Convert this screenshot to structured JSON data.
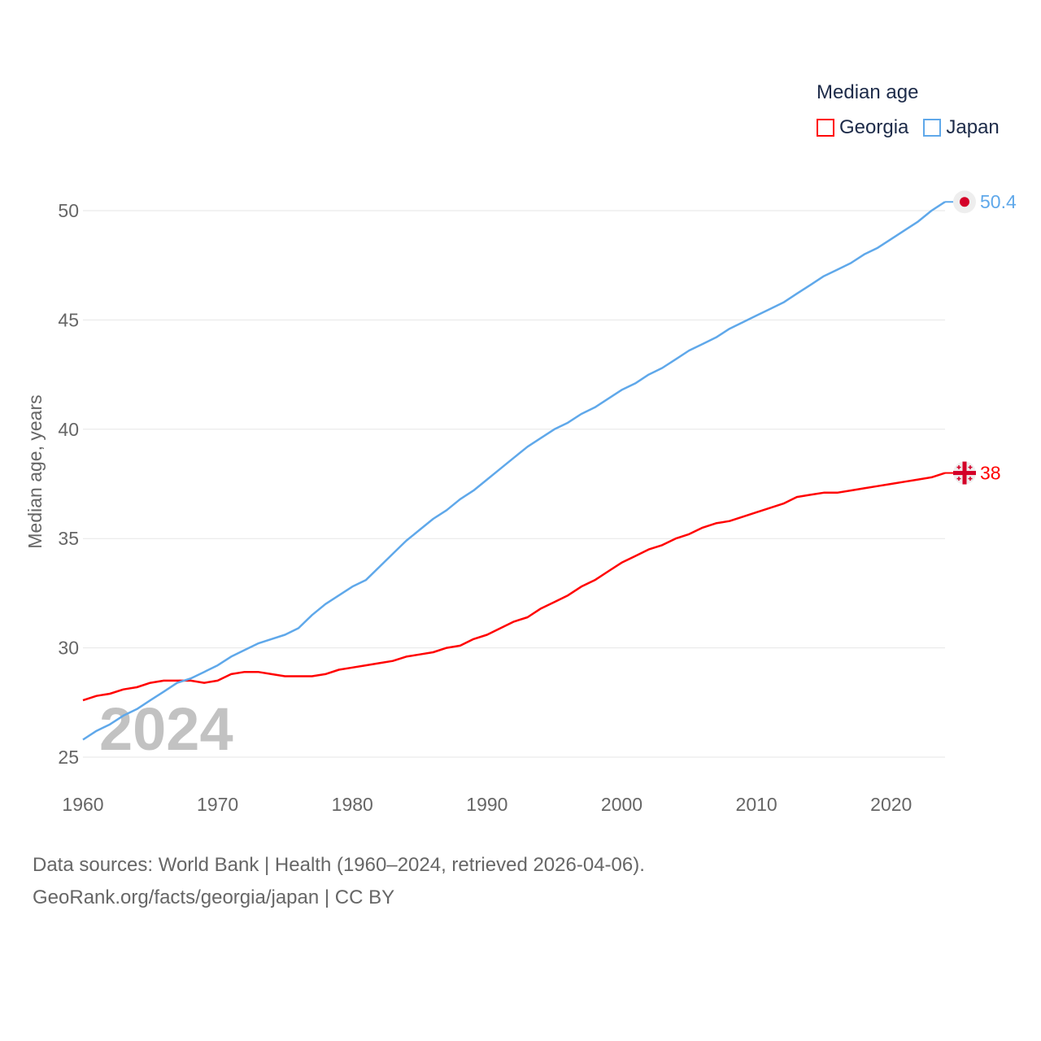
{
  "chart_data": {
    "type": "line",
    "title": "Median age",
    "ylabel": "Median age, years",
    "xlabel": "",
    "xlim": [
      1960,
      2024
    ],
    "ylim": [
      25,
      51
    ],
    "yticks": [
      25,
      30,
      35,
      40,
      45,
      50
    ],
    "xticks": [
      1960,
      1970,
      1980,
      1990,
      2000,
      2010,
      2020
    ],
    "grid": true,
    "legend_placement": "top-right",
    "year_watermark": "2024",
    "x_start": 1960,
    "series": [
      {
        "name": "Georgia",
        "color": "#ff0000",
        "end_label": "38",
        "flag": "georgia-flag",
        "values": [
          27.6,
          27.8,
          27.9,
          28.1,
          28.2,
          28.4,
          28.5,
          28.5,
          28.5,
          28.4,
          28.5,
          28.8,
          28.9,
          28.9,
          28.8,
          28.7,
          28.7,
          28.7,
          28.8,
          29.0,
          29.1,
          29.2,
          29.3,
          29.4,
          29.6,
          29.7,
          29.8,
          30.0,
          30.1,
          30.4,
          30.6,
          30.9,
          31.2,
          31.4,
          31.8,
          32.1,
          32.4,
          32.8,
          33.1,
          33.5,
          33.9,
          34.2,
          34.5,
          34.7,
          35.0,
          35.2,
          35.5,
          35.7,
          35.8,
          36.0,
          36.2,
          36.4,
          36.6,
          36.9,
          37.0,
          37.1,
          37.1,
          37.2,
          37.3,
          37.4,
          37.5,
          37.6,
          37.7,
          37.8,
          38.0
        ]
      },
      {
        "name": "Japan",
        "color": "#5fa8ea",
        "end_label": "50.4",
        "flag": "japan-flag",
        "values": [
          25.8,
          26.2,
          26.5,
          26.9,
          27.2,
          27.6,
          28.0,
          28.4,
          28.6,
          28.9,
          29.2,
          29.6,
          29.9,
          30.2,
          30.4,
          30.6,
          30.9,
          31.5,
          32.0,
          32.4,
          32.8,
          33.1,
          33.7,
          34.3,
          34.9,
          35.4,
          35.9,
          36.3,
          36.8,
          37.2,
          37.7,
          38.2,
          38.7,
          39.2,
          39.6,
          40.0,
          40.3,
          40.7,
          41.0,
          41.4,
          41.8,
          42.1,
          42.5,
          42.8,
          43.2,
          43.6,
          43.9,
          44.2,
          44.6,
          44.9,
          45.2,
          45.5,
          45.8,
          46.2,
          46.6,
          47.0,
          47.3,
          47.6,
          48.0,
          48.3,
          48.7,
          49.1,
          49.5,
          50.0,
          50.4
        ]
      }
    ]
  },
  "footer": {
    "line1": "Data sources: World Bank | Health (1960–2024, retrieved 2026-04-06).",
    "line2": "GeoRank.org/facts/georgia/japan | CC BY"
  }
}
